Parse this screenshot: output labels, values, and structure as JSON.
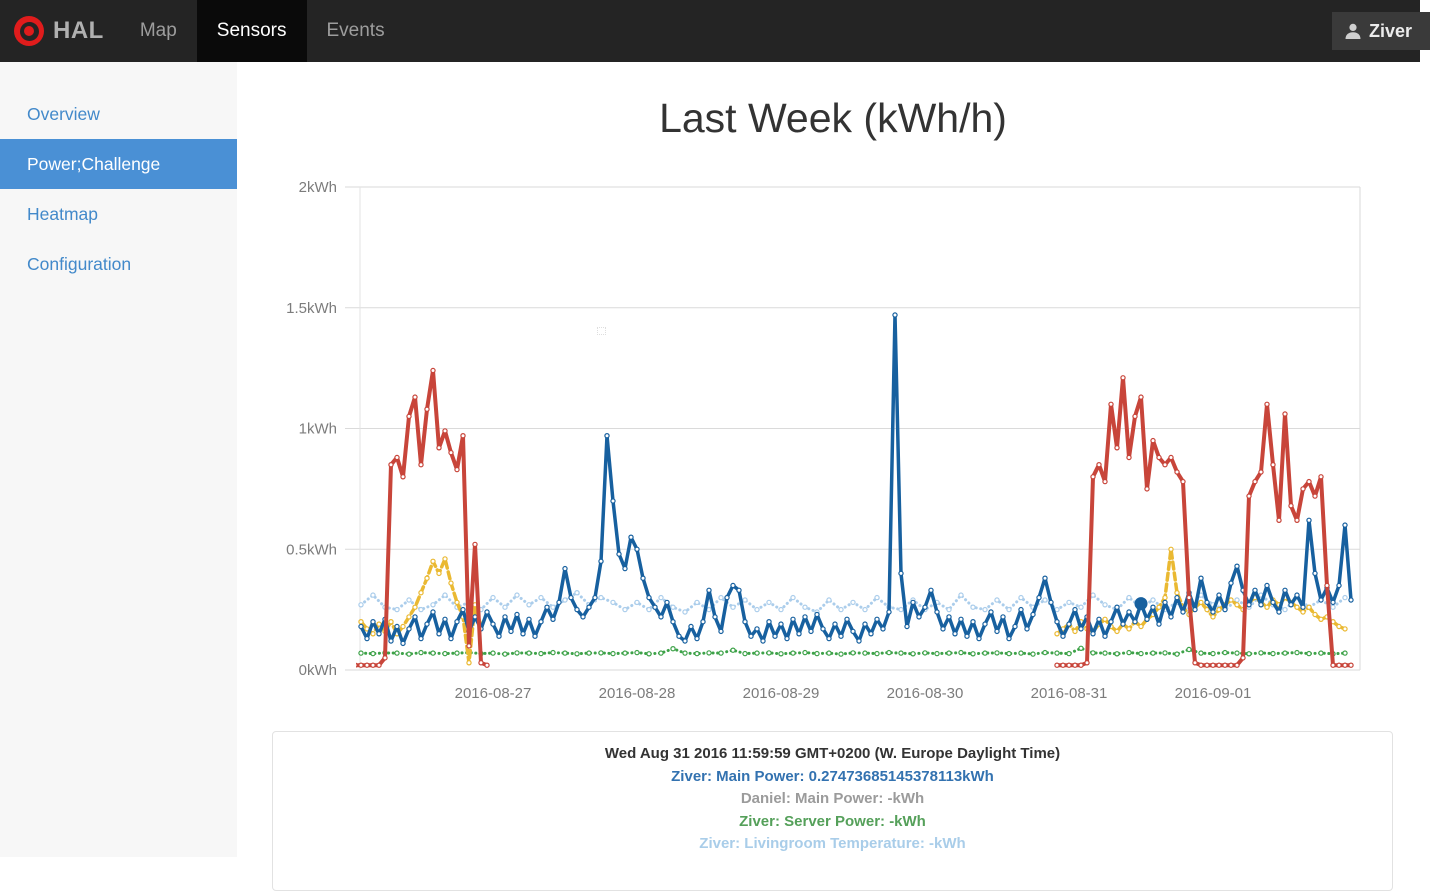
{
  "navbar": {
    "brand": "HAL",
    "items": [
      {
        "label": "Map",
        "active": false
      },
      {
        "label": "Sensors",
        "active": true
      },
      {
        "label": "Events",
        "active": false
      }
    ],
    "user": "Ziver",
    "colors": {
      "bg": "#242424",
      "active_bg": "#0a0a0a",
      "link": "#9d9d9d",
      "active_link": "#ffffff",
      "logo_red": "#e01c1c"
    }
  },
  "sidebar": {
    "items": [
      {
        "label": "Overview",
        "active": false
      },
      {
        "label": "Power;Challenge",
        "active": true
      },
      {
        "label": "Heatmap",
        "active": false
      },
      {
        "label": "Configuration",
        "active": false
      }
    ],
    "colors": {
      "bg": "#f7f7f7",
      "link": "#4289ca",
      "active_bg": "#4a90d5",
      "active_text": "#ffffff"
    }
  },
  "chart_data": {
    "type": "line",
    "title": "Last Week (kWh/h)",
    "x_axis": {
      "unit": "hours from 2016-08-26 00:00",
      "ticks": [
        {
          "h": 24,
          "label": "2016-08-27"
        },
        {
          "h": 48,
          "label": "2016-08-28"
        },
        {
          "h": 72,
          "label": "2016-08-29"
        },
        {
          "h": 96,
          "label": "2016-08-30"
        },
        {
          "h": 120,
          "label": "2016-08-31"
        },
        {
          "h": 144,
          "label": "2016-09-01"
        }
      ]
    },
    "ylim": [
      0,
      2
    ],
    "y_ticks": [
      {
        "v": 0,
        "label": "0kWh"
      },
      {
        "v": 0.5,
        "label": "0.5kWh"
      },
      {
        "v": 1,
        "label": "1kWh"
      },
      {
        "v": 1.5,
        "label": "1.5kWh"
      },
      {
        "v": 2,
        "label": "2kWh"
      }
    ],
    "grid": "horizontal",
    "legend_position": "panel below chart (hover legend)",
    "hover_point": {
      "h": 132,
      "v": 0.27473685145378113,
      "series": "Ziver: Main Power",
      "color": "#17609f"
    },
    "series": [
      {
        "id": "livingroom-temperature",
        "name": "Ziver: Livingroom Temperature",
        "legend_visible": true,
        "color": "#abcdeb",
        "style": "dotted",
        "dash": "0.1,4.5",
        "width": 3,
        "markers": true,
        "segments": [
          {
            "start": 2,
            "step": 2,
            "values": [
              0.27,
              0.31,
              0.26,
              0.25,
              0.29,
              0.25,
              0.27,
              0.31,
              0.26,
              0.28,
              0.25,
              0.3,
              0.26,
              0.31,
              0.27,
              0.3,
              0.26,
              0.29,
              0.32,
              0.27,
              0.3,
              0.28,
              0.25,
              0.28,
              0.25,
              0.3,
              0.26,
              0.24,
              0.28,
              0.25,
              0.3,
              0.26,
              0.29,
              0.25,
              0.28,
              0.25,
              0.3,
              0.26,
              0.24,
              0.29,
              0.25,
              0.28,
              0.25,
              0.3,
              0.26,
              0.25,
              0.29,
              0.25,
              0.28,
              0.25,
              0.31,
              0.26,
              0.25,
              0.29,
              0.25,
              0.3,
              0.26,
              0.29,
              0.25,
              0.28,
              0.26,
              0.31,
              0.27,
              0.25,
              0.3,
              0.26,
              0.29,
              0.25,
              0.28,
              0.25,
              0.31,
              0.27,
              0.25,
              0.29,
              0.26,
              0.31,
              0.27,
              0.25,
              0.3,
              0.26,
              0.29,
              0.26,
              0.3
            ]
          }
        ]
      },
      {
        "id": "server-power",
        "name": "Ziver: Server Power",
        "legend_visible": true,
        "color": "#3da248",
        "style": "dotted",
        "dash": "0.1,4.5",
        "width": 3,
        "markers": true,
        "segments": [
          {
            "start": 2,
            "step": 2,
            "values": [
              0.07,
              0.068,
              0.071,
              0.07,
              0.066,
              0.072,
              0.07,
              0.068,
              0.07,
              0.072,
              0.068,
              0.07,
              0.066,
              0.071,
              0.07,
              0.068,
              0.072,
              0.07,
              0.067,
              0.07,
              0.071,
              0.068,
              0.07,
              0.072,
              0.067,
              0.07,
              0.088,
              0.07,
              0.068,
              0.071,
              0.07,
              0.082,
              0.068,
              0.07,
              0.071,
              0.067,
              0.07,
              0.072,
              0.068,
              0.07,
              0.066,
              0.071,
              0.07,
              0.068,
              0.072,
              0.07,
              0.067,
              0.071,
              0.068,
              0.07,
              0.072,
              0.067,
              0.07,
              0.071,
              0.068,
              0.07,
              0.066,
              0.072,
              0.07,
              0.068,
              0.09,
              0.071,
              0.07,
              0.067,
              0.072,
              0.068,
              0.07,
              0.071,
              0.066,
              0.085,
              0.07,
              0.068,
              0.072,
              0.07,
              0.067,
              0.071,
              0.068,
              0.07,
              0.072,
              0.068,
              0.07,
              0.067,
              0.07
            ]
          }
        ]
      },
      {
        "id": "yellow-series",
        "name": "",
        "legend_visible": false,
        "color": "#eab932",
        "style": "dashed",
        "dash": "7,4",
        "width": 3.5,
        "markers": true,
        "segments": [
          {
            "start": 2,
            "step": 1,
            "values": [
              0.2,
              0.17,
              0.15,
              0.19,
              0.16,
              0.2,
              0.15,
              0.18,
              0.22,
              0.26,
              0.32,
              0.38,
              0.45,
              0.4,
              0.46,
              0.36,
              0.28,
              0.22,
              0.03,
              0.27,
              0.18
            ]
          },
          {
            "start": 118,
            "step": 1,
            "values": [
              0.15,
              0.17,
              0.19,
              0.16,
              0.2,
              0.17,
              0.16,
              0.19,
              0.21,
              0.18,
              0.16,
              0.19,
              0.17,
              0.2,
              0.18,
              0.21,
              0.23,
              0.26,
              0.3,
              0.5,
              0.32,
              0.26,
              0.23,
              0.26,
              0.28,
              0.25,
              0.22,
              0.25,
              0.27,
              0.29,
              0.27,
              0.25,
              0.28,
              0.3,
              0.28,
              0.26,
              0.29,
              0.27,
              0.3,
              0.28,
              0.26,
              0.24,
              0.26,
              0.23,
              0.21,
              0.22,
              0.2,
              0.18,
              0.17
            ]
          }
        ]
      },
      {
        "id": "main-power",
        "name": "Ziver: Main Power",
        "legend_visible": true,
        "color": "#17609f",
        "style": "solid",
        "dash": "",
        "width": 3.5,
        "markers": true,
        "segments": [
          {
            "start": 2,
            "step": 1,
            "values": [
              0.18,
              0.13,
              0.2,
              0.15,
              0.21,
              0.12,
              0.18,
              0.11,
              0.17,
              0.22,
              0.13,
              0.19,
              0.24,
              0.15,
              0.21,
              0.13,
              0.2,
              0.25,
              0.16,
              0.22,
              0.17,
              0.24,
              0.19,
              0.14,
              0.22,
              0.16,
              0.23,
              0.15,
              0.21,
              0.14,
              0.2,
              0.26,
              0.21,
              0.28,
              0.42,
              0.3,
              0.25,
              0.22,
              0.26,
              0.3,
              0.45,
              0.97,
              0.7,
              0.48,
              0.42,
              0.55,
              0.5,
              0.38,
              0.3,
              0.26,
              0.22,
              0.28,
              0.2,
              0.14,
              0.12,
              0.18,
              0.13,
              0.2,
              0.33,
              0.22,
              0.16,
              0.3,
              0.35,
              0.33,
              0.2,
              0.14,
              0.17,
              0.12,
              0.2,
              0.14,
              0.19,
              0.13,
              0.21,
              0.15,
              0.22,
              0.16,
              0.23,
              0.17,
              0.13,
              0.19,
              0.14,
              0.21,
              0.16,
              0.12,
              0.19,
              0.15,
              0.21,
              0.17,
              0.24,
              1.47,
              0.4,
              0.18,
              0.28,
              0.22,
              0.26,
              0.33,
              0.24,
              0.17,
              0.22,
              0.15,
              0.21,
              0.14,
              0.2,
              0.13,
              0.19,
              0.24,
              0.16,
              0.22,
              0.13,
              0.18,
              0.25,
              0.17,
              0.23,
              0.3,
              0.38,
              0.28,
              0.2,
              0.14,
              0.19,
              0.25,
              0.17,
              0.22,
              0.15,
              0.21,
              0.14,
              0.2,
              0.26,
              0.19,
              0.24,
              0.2,
              0.275,
              0.21,
              0.26,
              0.19,
              0.28,
              0.22,
              0.3,
              0.24,
              0.32,
              0.25,
              0.38,
              0.28,
              0.24,
              0.31,
              0.25,
              0.36,
              0.43,
              0.33,
              0.27,
              0.33,
              0.27,
              0.35,
              0.28,
              0.24,
              0.33,
              0.27,
              0.31,
              0.26,
              0.62,
              0.4,
              0.29,
              0.34,
              0.28,
              0.35,
              0.6,
              0.29
            ]
          }
        ]
      },
      {
        "id": "red-series",
        "name": "",
        "legend_visible": false,
        "color": "#c8453a",
        "style": "solid",
        "dash": "",
        "width": 4,
        "markers": true,
        "segments": [
          {
            "start": 1,
            "step": 1,
            "values": [
              0.02,
              0.02,
              0.02,
              0.02,
              0.02,
              0.05,
              0.85,
              0.88,
              0.8,
              1.05,
              1.13,
              0.85,
              1.08,
              1.24,
              0.92,
              0.99,
              0.9,
              0.83,
              0.97,
              0.1,
              0.52,
              0.03,
              0.02
            ]
          },
          {
            "start": 118,
            "step": 1,
            "values": [
              0.02,
              0.02,
              0.02,
              0.02,
              0.02,
              0.03,
              0.8,
              0.85,
              0.78,
              1.1,
              0.92,
              1.21,
              0.88,
              1.05,
              1.13,
              0.75,
              0.95,
              0.88,
              0.85,
              0.88,
              0.82,
              0.78,
              0.3,
              0.03,
              0.02,
              0.02,
              0.02,
              0.02,
              0.02,
              0.02,
              0.02,
              0.05,
              0.72,
              0.78,
              0.82,
              1.1,
              0.85,
              0.62,
              1.06,
              0.68,
              0.62,
              0.75,
              0.78,
              0.72,
              0.8,
              0.35,
              0.02,
              0.02,
              0.02,
              0.02
            ]
          }
        ]
      }
    ]
  },
  "tooltip_panel": {
    "timestamp": "Wed Aug 31 2016 11:59:59 GMT+0200 (W. Europe Daylight Time)",
    "entries": [
      {
        "text": "Ziver: Main Power: 0.27473685145378113kWh",
        "color": "#3372b0"
      },
      {
        "text": "Daniel: Main Power: -kWh",
        "color": "#9b9b9b"
      },
      {
        "text": "Ziver: Server Power: -kWh",
        "color": "#55a05a"
      },
      {
        "text": "Ziver: Livingroom Temperature: -kWh",
        "color": "#a9cde9"
      }
    ]
  }
}
